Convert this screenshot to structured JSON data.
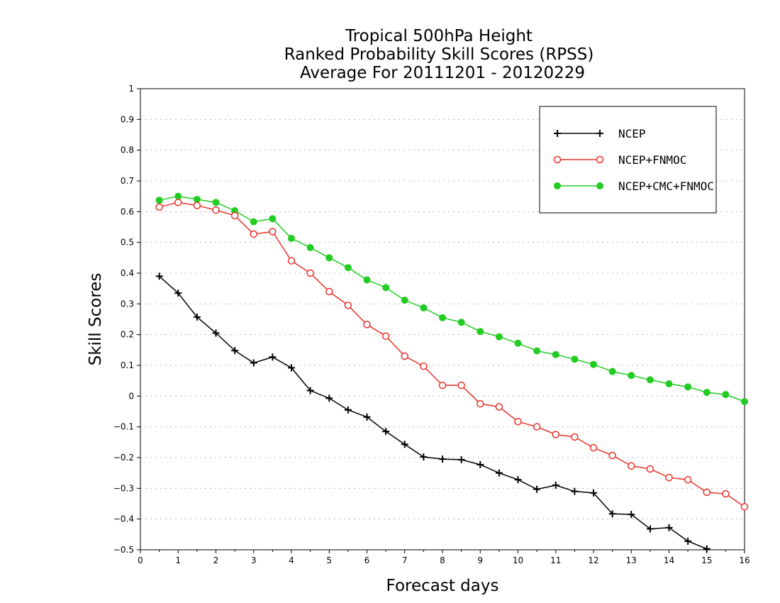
{
  "chart_data": {
    "type": "line",
    "title_lines": [
      "Tropical 500hPa Height",
      "Ranked Probability Skill Scores (RPSS)",
      "Average For 20111201 - 20120229"
    ],
    "xlabel": "Forecast days",
    "ylabel": "Skill Scores",
    "xlim": [
      0,
      16
    ],
    "ylim": [
      -0.5,
      1
    ],
    "xticks": [
      "0",
      "1",
      "2",
      "3",
      "4",
      "5",
      "6",
      "7",
      "8",
      "9",
      "10",
      "11",
      "12",
      "13",
      "14",
      "15",
      "16"
    ],
    "yticks": [
      "−0.5",
      "−0.4",
      "−0.3",
      "−0.2",
      "−0.1",
      "0",
      "0.1",
      "0.2",
      "0.3",
      "0.4",
      "0.5",
      "0.6",
      "0.7",
      "0.8",
      "0.9",
      "1"
    ],
    "ytick_values": [
      -0.5,
      -0.4,
      -0.3,
      -0.2,
      -0.1,
      0,
      0.1,
      0.2,
      0.3,
      0.4,
      0.5,
      0.6,
      0.7,
      0.8,
      0.9,
      1.0
    ],
    "grid": true,
    "legend_position": "top-right",
    "x": [
      0.5,
      1,
      1.5,
      2,
      2.5,
      3,
      3.5,
      4,
      4.5,
      5,
      5.5,
      6,
      6.5,
      7,
      7.5,
      8,
      8.5,
      9,
      9.5,
      10,
      10.5,
      11,
      11.5,
      12,
      12.5,
      13,
      13.5,
      14,
      14.5,
      15,
      15.5,
      16
    ],
    "series": [
      {
        "name": "NCEP",
        "color": "#000000",
        "marker": "plus",
        "values": [
          0.39,
          0.335,
          0.257,
          0.205,
          0.148,
          0.108,
          0.127,
          0.092,
          0.018,
          -0.007,
          -0.045,
          -0.068,
          -0.115,
          -0.157,
          -0.198,
          -0.205,
          -0.207,
          -0.223,
          -0.25,
          -0.272,
          -0.303,
          -0.29,
          -0.31,
          -0.315,
          -0.383,
          -0.385,
          -0.432,
          -0.428,
          -0.472,
          -0.497,
          null,
          null
        ]
      },
      {
        "name": "NCEP+FNMOC",
        "color": "#e8322a",
        "marker": "open-circle",
        "values": [
          0.615,
          0.63,
          0.62,
          0.605,
          0.587,
          0.527,
          0.535,
          0.44,
          0.4,
          0.34,
          0.295,
          0.233,
          0.195,
          0.13,
          0.097,
          0.035,
          0.035,
          -0.025,
          -0.035,
          -0.083,
          -0.1,
          -0.125,
          -0.133,
          -0.168,
          -0.193,
          -0.227,
          -0.237,
          -0.265,
          -0.272,
          -0.313,
          -0.318,
          -0.36
        ]
      },
      {
        "name": "NCEP+CMC+FNMOC",
        "color": "#22cc22",
        "marker": "filled-circle",
        "values": [
          0.637,
          0.65,
          0.64,
          0.63,
          0.603,
          0.567,
          0.577,
          0.513,
          0.483,
          0.45,
          0.418,
          0.378,
          0.353,
          0.312,
          0.287,
          0.255,
          0.24,
          0.21,
          0.193,
          0.172,
          0.147,
          0.135,
          0.12,
          0.103,
          0.08,
          0.067,
          0.053,
          0.04,
          0.03,
          0.012,
          0.005,
          -0.018
        ]
      }
    ]
  }
}
